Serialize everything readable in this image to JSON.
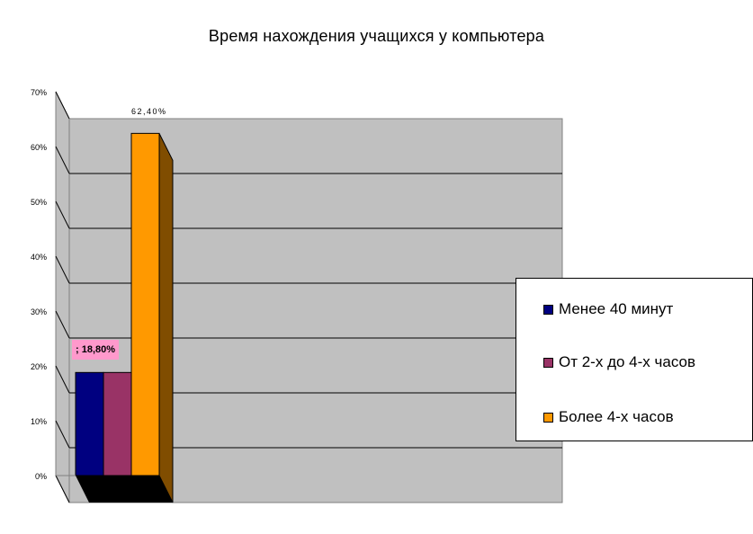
{
  "chart_data": {
    "type": "bar",
    "title": "Время нахождения учащихся у компьютера",
    "y_axis": {
      "min": 0,
      "max": 70,
      "step": 10,
      "tick_labels": [
        "0%",
        "10%",
        "20%",
        "30%",
        "40%",
        "50%",
        "60%",
        "70%"
      ]
    },
    "grid": true,
    "series": [
      {
        "name": "Менее 40 минут",
        "value": 18.8,
        "color": "#000080"
      },
      {
        "name": "От 2-х до 4-х часов",
        "value": 18.8,
        "color": "#993366"
      },
      {
        "name": "Более 4-х часов",
        "value": 62.4,
        "color": "#ff9900"
      }
    ],
    "data_labels": [
      {
        "text": "; 18,80%",
        "series": 0
      },
      {
        "text": "62,40%",
        "series": 2
      }
    ],
    "legend_position": "right",
    "style": {
      "wall_color": "#c0c0c0",
      "floor_color": "#000000",
      "label_bg": "#ff99cc"
    }
  }
}
